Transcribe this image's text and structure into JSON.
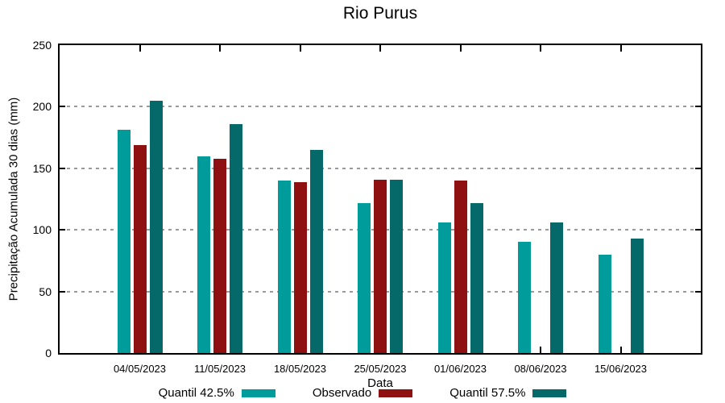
{
  "title": "Rio Purus",
  "axes": {
    "ylabel": "Precipitação Acumulada 30 dias (mm)",
    "xlabel": "Data",
    "y_ticks": [
      "0",
      "50",
      "100",
      "150",
      "200",
      "250"
    ]
  },
  "legend": {
    "items": [
      {
        "label": "Quantil 42.5%",
        "color": "#009B9B"
      },
      {
        "label": "Observado",
        "color": "#8E1010"
      },
      {
        "label": "Quantil 57.5%",
        "color": "#066969"
      }
    ]
  },
  "chart_data": {
    "type": "bar",
    "title": "Rio Purus",
    "xlabel": "Data",
    "ylabel": "Precipitação Acumulada 30 dias (mm)",
    "categories": [
      "04/05/2023",
      "11/05/2023",
      "18/05/2023",
      "25/05/2023",
      "01/06/2023",
      "08/06/2023",
      "15/06/2023"
    ],
    "series": [
      {
        "name": "Quantil 42.5%",
        "color": "#009B9B",
        "values": [
          181,
          160,
          140,
          122,
          106,
          90,
          80
        ]
      },
      {
        "name": "Observado",
        "color": "#8E1010",
        "values": [
          169,
          158,
          139,
          141,
          140,
          null,
          null
        ]
      },
      {
        "name": "Quantil 57.5%",
        "color": "#066969",
        "values": [
          205,
          186,
          165,
          141,
          122,
          106,
          93
        ]
      }
    ],
    "ylim": [
      0,
      250
    ],
    "y_tick_step": 50,
    "grid": "horizontal-dotted",
    "grid_color": "#9a9a9a",
    "legend_position": "bottom-center",
    "axis_box": "full-border-with-mirrored-ticks"
  }
}
